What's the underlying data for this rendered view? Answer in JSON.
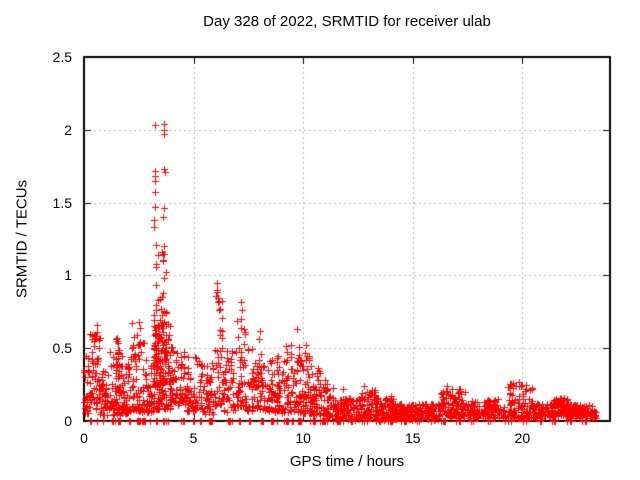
{
  "chart_data": {
    "type": "scatter",
    "title": "Day 328 of 2022, SRMTID for receiver ulab",
    "xlabel": "GPS time / hours",
    "ylabel": "SRMTID / TECUs",
    "xlim": [
      0,
      24
    ],
    "ylim": [
      0,
      2.5
    ],
    "xticks": [
      "0",
      "5",
      "10",
      "15",
      "20"
    ],
    "xtick_values": [
      0,
      5,
      10,
      15,
      20
    ],
    "yticks": [
      "0",
      "0.5",
      "1",
      "1.5",
      "2",
      "2.5"
    ],
    "ytick_values": [
      0,
      0.5,
      1,
      1.5,
      2,
      2.5
    ],
    "grid": true,
    "grid_style": "dashed",
    "grid_color": "#b3b3b3",
    "marker": "plus",
    "marker_color": "#ff0000",
    "marker_size_px": 7,
    "axis_color": "#000000",
    "seed": 20221128,
    "peak_points": [
      [
        3.23,
        2.03
      ],
      [
        3.65,
        2.04
      ],
      [
        3.66,
        2.0
      ],
      [
        3.64,
        1.97
      ],
      [
        3.22,
        1.72
      ],
      [
        3.64,
        1.73
      ],
      [
        3.69,
        1.71
      ],
      [
        3.23,
        1.68
      ],
      [
        3.24,
        1.65
      ],
      [
        3.24,
        1.57
      ],
      [
        3.22,
        1.47
      ],
      [
        3.64,
        1.46
      ],
      [
        3.62,
        1.4
      ],
      [
        3.21,
        1.38
      ],
      [
        3.2,
        1.33
      ],
      [
        3.29,
        1.21
      ],
      [
        3.66,
        1.2
      ],
      [
        3.38,
        1.14
      ],
      [
        3.6,
        1.1
      ],
      [
        3.27,
        1.08
      ],
      [
        3.74,
        1.02
      ],
      [
        3.66,
        0.98
      ],
      [
        6.05,
        0.95
      ],
      [
        6.08,
        0.9
      ],
      [
        6.02,
        0.86
      ],
      [
        6.12,
        0.82
      ],
      [
        6.18,
        0.76
      ],
      [
        7.15,
        0.82
      ],
      [
        7.22,
        0.76
      ],
      [
        7.18,
        0.7
      ],
      [
        7.3,
        0.63
      ],
      [
        9.74,
        0.63
      ],
      [
        9.79,
        0.51
      ],
      [
        0.61,
        0.66
      ],
      [
        0.58,
        0.61
      ],
      [
        2.18,
        0.67
      ],
      [
        2.5,
        0.68
      ],
      [
        2.55,
        0.64
      ],
      [
        8.02,
        0.62
      ],
      [
        10.15,
        0.52
      ],
      [
        1.5,
        0.57
      ],
      [
        11.8,
        0.22
      ],
      [
        12.78,
        0.24
      ],
      [
        13.15,
        0.21
      ],
      [
        14.0,
        0.17
      ],
      [
        16.55,
        0.24
      ],
      [
        17.4,
        0.2
      ],
      [
        19.85,
        0.27
      ],
      [
        19.95,
        0.24
      ],
      [
        21.7,
        0.16
      ]
    ],
    "cluster_fields": [
      "x_start",
      "x_end",
      "count",
      "y_min",
      "y_max",
      "skew_low"
    ],
    "clusters": [
      [
        0.0,
        0.25,
        28,
        0.05,
        0.46,
        1.5
      ],
      [
        0.25,
        0.75,
        55,
        0.08,
        0.6,
        1.2
      ],
      [
        0.75,
        1.15,
        40,
        0.04,
        0.35,
        1.4
      ],
      [
        1.15,
        1.75,
        60,
        0.04,
        0.5,
        1.7
      ],
      [
        1.42,
        1.62,
        18,
        0.2,
        0.57,
        1.0
      ],
      [
        1.75,
        2.1,
        40,
        0.05,
        0.4,
        1.5
      ],
      [
        2.1,
        2.35,
        22,
        0.08,
        0.62,
        1.2
      ],
      [
        2.35,
        2.85,
        50,
        0.06,
        0.6,
        1.6
      ],
      [
        2.85,
        3.15,
        30,
        0.06,
        0.38,
        1.4
      ],
      [
        3.15,
        3.95,
        120,
        0.08,
        0.7,
        1.3
      ],
      [
        3.18,
        3.32,
        26,
        0.25,
        1.3,
        1.6
      ],
      [
        3.55,
        3.76,
        26,
        0.25,
        1.3,
        1.6
      ],
      [
        3.35,
        3.55,
        16,
        0.25,
        0.95,
        1.5
      ],
      [
        3.95,
        4.65,
        60,
        0.1,
        0.55,
        1.3
      ],
      [
        4.65,
        5.35,
        52,
        0.07,
        0.45,
        1.5
      ],
      [
        5.35,
        5.95,
        45,
        0.05,
        0.4,
        1.5
      ],
      [
        5.95,
        6.35,
        42,
        0.1,
        0.92,
        1.7
      ],
      [
        6.35,
        6.95,
        45,
        0.06,
        0.5,
        1.6
      ],
      [
        6.95,
        7.45,
        40,
        0.1,
        0.8,
        1.8
      ],
      [
        7.45,
        7.95,
        45,
        0.06,
        0.5,
        1.6
      ],
      [
        7.95,
        8.25,
        26,
        0.08,
        0.58,
        1.4
      ],
      [
        8.25,
        9.15,
        70,
        0.05,
        0.45,
        1.4
      ],
      [
        9.15,
        9.95,
        68,
        0.06,
        0.55,
        1.5
      ],
      [
        9.95,
        10.45,
        48,
        0.05,
        0.48,
        1.6
      ],
      [
        10.45,
        11.0,
        46,
        0.04,
        0.38,
        1.6
      ],
      [
        11.0,
        11.35,
        26,
        0.03,
        0.28,
        1.7
      ],
      [
        11.35,
        12.6,
        110,
        0.01,
        0.16,
        1.2
      ],
      [
        12.6,
        13.3,
        60,
        0.02,
        0.22,
        1.5
      ],
      [
        13.3,
        14.2,
        85,
        0.01,
        0.16,
        1.3
      ],
      [
        14.2,
        16.25,
        170,
        0.01,
        0.12,
        1.1
      ],
      [
        16.25,
        17.45,
        100,
        0.02,
        0.22,
        1.4
      ],
      [
        17.45,
        18.05,
        45,
        0.02,
        0.14,
        1.2
      ],
      [
        18.2,
        18.9,
        55,
        0.02,
        0.15,
        1.3
      ],
      [
        18.9,
        19.35,
        16,
        0.02,
        0.1,
        1.2
      ],
      [
        19.35,
        20.45,
        90,
        0.02,
        0.26,
        1.6
      ],
      [
        20.45,
        21.4,
        80,
        0.02,
        0.12,
        1.1
      ],
      [
        21.4,
        22.1,
        65,
        0.03,
        0.16,
        1.3
      ],
      [
        22.1,
        23.35,
        105,
        0.02,
        0.11,
        1.1
      ]
    ],
    "zero_run_fields": [
      "x_start",
      "x_end",
      "count"
    ],
    "zero_runs": [
      [
        0.28,
        0.34,
        3
      ],
      [
        0.55,
        0.6,
        2
      ],
      [
        0.85,
        0.9,
        2
      ],
      [
        1.25,
        1.45,
        10
      ],
      [
        1.5,
        1.68,
        9
      ],
      [
        2.05,
        2.1,
        2
      ],
      [
        2.38,
        2.58,
        8
      ],
      [
        2.62,
        2.78,
        6
      ],
      [
        3.0,
        3.05,
        2
      ],
      [
        3.28,
        3.34,
        3
      ],
      [
        3.55,
        3.85,
        7
      ],
      [
        4.4,
        4.6,
        6
      ],
      [
        4.95,
        5.0,
        2
      ],
      [
        5.28,
        5.33,
        2
      ],
      [
        5.72,
        5.87,
        5
      ],
      [
        6.55,
        6.75,
        5
      ],
      [
        7.06,
        7.12,
        2
      ],
      [
        7.45,
        7.68,
        5
      ],
      [
        8.05,
        8.25,
        4
      ],
      [
        8.5,
        8.82,
        7
      ],
      [
        9.1,
        9.35,
        5
      ],
      [
        9.5,
        9.58,
        2
      ],
      [
        9.75,
        10.05,
        6
      ],
      [
        10.3,
        10.55,
        5
      ],
      [
        10.75,
        11.2,
        7
      ],
      [
        11.35,
        11.9,
        7
      ],
      [
        12.1,
        12.3,
        3
      ],
      [
        12.6,
        12.9,
        4
      ],
      [
        13.3,
        13.55,
        3
      ],
      [
        13.8,
        14.1,
        4
      ],
      [
        14.4,
        14.7,
        4
      ],
      [
        15.1,
        15.3,
        3
      ],
      [
        15.8,
        16.0,
        3
      ],
      [
        16.3,
        16.6,
        4
      ],
      [
        16.9,
        17.2,
        4
      ],
      [
        17.5,
        17.8,
        4
      ],
      [
        18.3,
        18.6,
        3
      ],
      [
        19.2,
        19.5,
        3
      ],
      [
        19.9,
        20.2,
        3
      ],
      [
        20.6,
        20.9,
        3
      ],
      [
        21.3,
        21.6,
        3
      ],
      [
        22.0,
        22.3,
        3
      ],
      [
        22.7,
        23.0,
        3
      ]
    ]
  }
}
